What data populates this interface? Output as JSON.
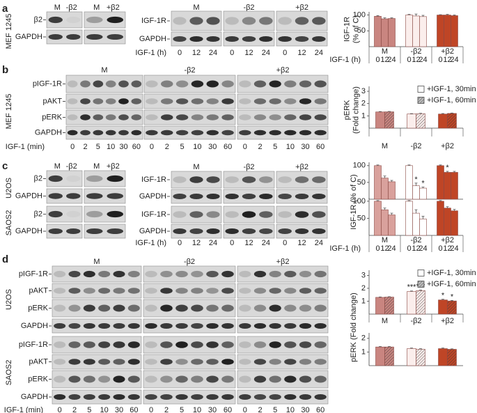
{
  "panels": [
    {
      "letter": "a",
      "side_labels": [
        "MEF 1245"
      ],
      "small_blot": {
        "headers": [
          [
            "M",
            "-β2"
          ],
          [
            "M",
            "+β2"
          ]
        ],
        "rows": [
          "β2",
          "GAPDH"
        ]
      },
      "blot": {
        "groups": [
          "M",
          "-β2",
          "+β2"
        ],
        "rows": [
          "IGF-1R",
          "GAPDH"
        ],
        "lane_title": "IGF-1 (h)",
        "lanes": [
          0,
          12,
          24
        ]
      }
    },
    {
      "letter": "b",
      "side_labels": [
        "MEF 1245"
      ],
      "blot": {
        "groups": [
          "M",
          "-β2",
          "+β2"
        ],
        "rows": [
          "pIGF-1R",
          "pAKT",
          "pERK",
          "GAPDH"
        ],
        "lane_title": "IGF-1 (min)",
        "lanes": [
          0,
          2,
          5,
          10,
          30,
          60
        ]
      }
    },
    {
      "letter": "c",
      "side_labels": [
        "U2OS",
        "SAOS2"
      ],
      "small_blot": {
        "headers": [
          [
            "M",
            "-β2"
          ],
          [
            "M",
            "+β2"
          ]
        ],
        "rows": [
          "β2",
          "GAPDH",
          "β2",
          "GAPDH"
        ]
      },
      "blot": {
        "groups": [
          "M",
          "-β2",
          "+β2"
        ],
        "rows": [
          "IGF-1R",
          "GAPDH",
          "IGF-1R",
          "GAPDH"
        ],
        "lane_title": "IGF-1 (h)",
        "lanes": [
          0,
          12,
          24
        ]
      }
    },
    {
      "letter": "d",
      "side_labels": [
        "U2OS",
        "SAOS2"
      ],
      "blot": {
        "groups": [
          "M",
          "-β2",
          "+β2"
        ],
        "rows": [
          "pIGF-1R",
          "pAKT",
          "pERK",
          "GAPDH",
          "pIGF-1R",
          "pAKT",
          "pERK",
          "GAPDH"
        ],
        "lane_title": "IGF-1 (min)",
        "lanes": [
          0,
          2,
          5,
          10,
          30,
          60
        ]
      }
    }
  ],
  "chart_data": [
    {
      "type": "bar",
      "y_label": [
        "IGF-1R",
        "(% of C)"
      ],
      "x_label": "IGF-1 (h)",
      "categories": [
        "M",
        "-β2",
        "+β2"
      ],
      "category_colors": [
        "#c98580",
        "#fbeeec",
        "#bf4526"
      ],
      "series": [
        {
          "name": "0",
          "values": [
            96,
            100,
            100
          ],
          "errors": [
            2,
            2,
            1
          ]
        },
        {
          "name": "12",
          "values": [
            88,
            97,
            100
          ],
          "errors": [
            3,
            6,
            2
          ]
        },
        {
          "name": "24",
          "values": [
            89,
            95,
            98
          ],
          "errors": [
            2,
            4,
            2
          ]
        }
      ],
      "ylim": [
        0,
        110
      ],
      "yticks": [
        50,
        100
      ]
    },
    {
      "type": "bar",
      "y_label": [
        "pERK",
        "(Fold change)"
      ],
      "categories": [
        "M",
        "-β2",
        "+β2"
      ],
      "category_colors": [
        "#c98580",
        "#fbeeec",
        "#bf4526"
      ],
      "series": [
        {
          "name": "+IGF-1, 30min",
          "pattern": "solid",
          "values": [
            1.32,
            1.15,
            1.15
          ],
          "errors": [
            0.03,
            0.03,
            0.04
          ]
        },
        {
          "name": "+IGF-1, 60min",
          "pattern": "hatch",
          "values": [
            1.33,
            1.18,
            1.2
          ],
          "errors": [
            0.03,
            0.03,
            0.03
          ]
        }
      ],
      "ylim": [
        0,
        3.4
      ],
      "yticks": [
        1,
        2,
        3
      ],
      "legend": "upper right"
    },
    {
      "type": "bar",
      "y_label": [
        "IGF-1R (% of C)"
      ],
      "category_colors": [
        "#d9a19c",
        "#ffffff",
        "#bf4526"
      ],
      "series": [
        {
          "values": [
            100,
            100,
            100
          ],
          "errors": [
            2,
            2,
            2
          ]
        },
        {
          "values": [
            63,
            40,
            80
          ],
          "errors": [
            6,
            8,
            3
          ],
          "significance": [
            null,
            "*",
            "*"
          ]
        },
        {
          "values": [
            52,
            33,
            80
          ],
          "errors": [
            4,
            3,
            3
          ],
          "significance": [
            null,
            "*",
            null
          ]
        }
      ],
      "ylim": [
        0,
        110
      ],
      "yticks": [
        50,
        100
      ]
    },
    {
      "type": "bar",
      "x_label": "IGF-1 (h)",
      "categories": [
        "M",
        "-β2",
        "+β2"
      ],
      "category_colors": [
        "#d9a19c",
        "#ffffff",
        "#bf4526"
      ],
      "series": [
        {
          "name": "0",
          "values": [
            100,
            100,
            100
          ],
          "errors": [
            2,
            2,
            2
          ]
        },
        {
          "name": "12",
          "values": [
            75,
            65,
            80
          ],
          "errors": [
            5,
            10,
            4
          ]
        },
        {
          "name": "24",
          "values": [
            60,
            48,
            72
          ],
          "errors": [
            5,
            8,
            4
          ]
        }
      ],
      "ylim": [
        0,
        110
      ],
      "yticks": [
        50,
        100
      ]
    },
    {
      "type": "bar",
      "y_label": [
        "pERK (Fold change)"
      ],
      "categories": [
        "M",
        "-β2",
        "+β2"
      ],
      "category_colors": [
        "#c98580",
        "#fbeeec",
        "#bf4526"
      ],
      "series": [
        {
          "name": "+IGF-1, 30min",
          "pattern": "solid",
          "values": [
            1.3,
            1.75,
            1.1
          ],
          "errors": [
            0.03,
            0.04,
            0.05
          ],
          "significance": [
            null,
            "***",
            "*"
          ]
        },
        {
          "name": "+IGF-1, 60min",
          "pattern": "hatch",
          "values": [
            1.32,
            1.82,
            1.02
          ],
          "errors": [
            0.03,
            0.04,
            0.04
          ],
          "significance": [
            null,
            "***",
            "*"
          ]
        }
      ],
      "ylim": [
        0,
        3.4
      ],
      "yticks": [
        1,
        2,
        3
      ],
      "legend": "upper right"
    },
    {
      "type": "bar",
      "category_colors": [
        "#c98580",
        "#fbeeec",
        "#bf4526"
      ],
      "series": [
        {
          "pattern": "solid",
          "values": [
            1.37,
            1.25,
            1.25
          ],
          "errors": [
            0.03,
            0.04,
            0.04
          ]
        },
        {
          "pattern": "hatch",
          "values": [
            1.37,
            1.2,
            1.2
          ],
          "errors": [
            0.03,
            0.04,
            0.03
          ]
        }
      ],
      "ylim": [
        0,
        2.4
      ],
      "yticks": [
        1,
        2
      ]
    }
  ]
}
